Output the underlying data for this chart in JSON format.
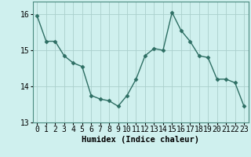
{
  "x": [
    0,
    1,
    2,
    3,
    4,
    5,
    6,
    7,
    8,
    9,
    10,
    11,
    12,
    13,
    14,
    15,
    16,
    17,
    18,
    19,
    20,
    21,
    22,
    23
  ],
  "y": [
    15.95,
    15.25,
    15.25,
    14.85,
    14.65,
    14.55,
    13.75,
    13.65,
    13.6,
    13.45,
    13.75,
    14.2,
    14.85,
    15.05,
    15.0,
    16.05,
    15.55,
    15.25,
    14.85,
    14.8,
    14.2,
    14.2,
    14.1,
    13.45
  ],
  "xlabel": "Humidex (Indice chaleur)",
  "ylabel": "",
  "ylim": [
    13.0,
    16.35
  ],
  "yticks": [
    13,
    14,
    15,
    16
  ],
  "xticks": [
    0,
    1,
    2,
    3,
    4,
    5,
    6,
    7,
    8,
    9,
    10,
    11,
    12,
    13,
    14,
    15,
    16,
    17,
    18,
    19,
    20,
    21,
    22,
    23
  ],
  "line_color": "#2d6e63",
  "marker": "D",
  "markersize": 2.5,
  "bg_color": "#cff0ee",
  "grid_color": "#aacfcc",
  "xlabel_fontsize": 7.5,
  "tick_fontsize": 7.0,
  "linewidth": 1.0
}
